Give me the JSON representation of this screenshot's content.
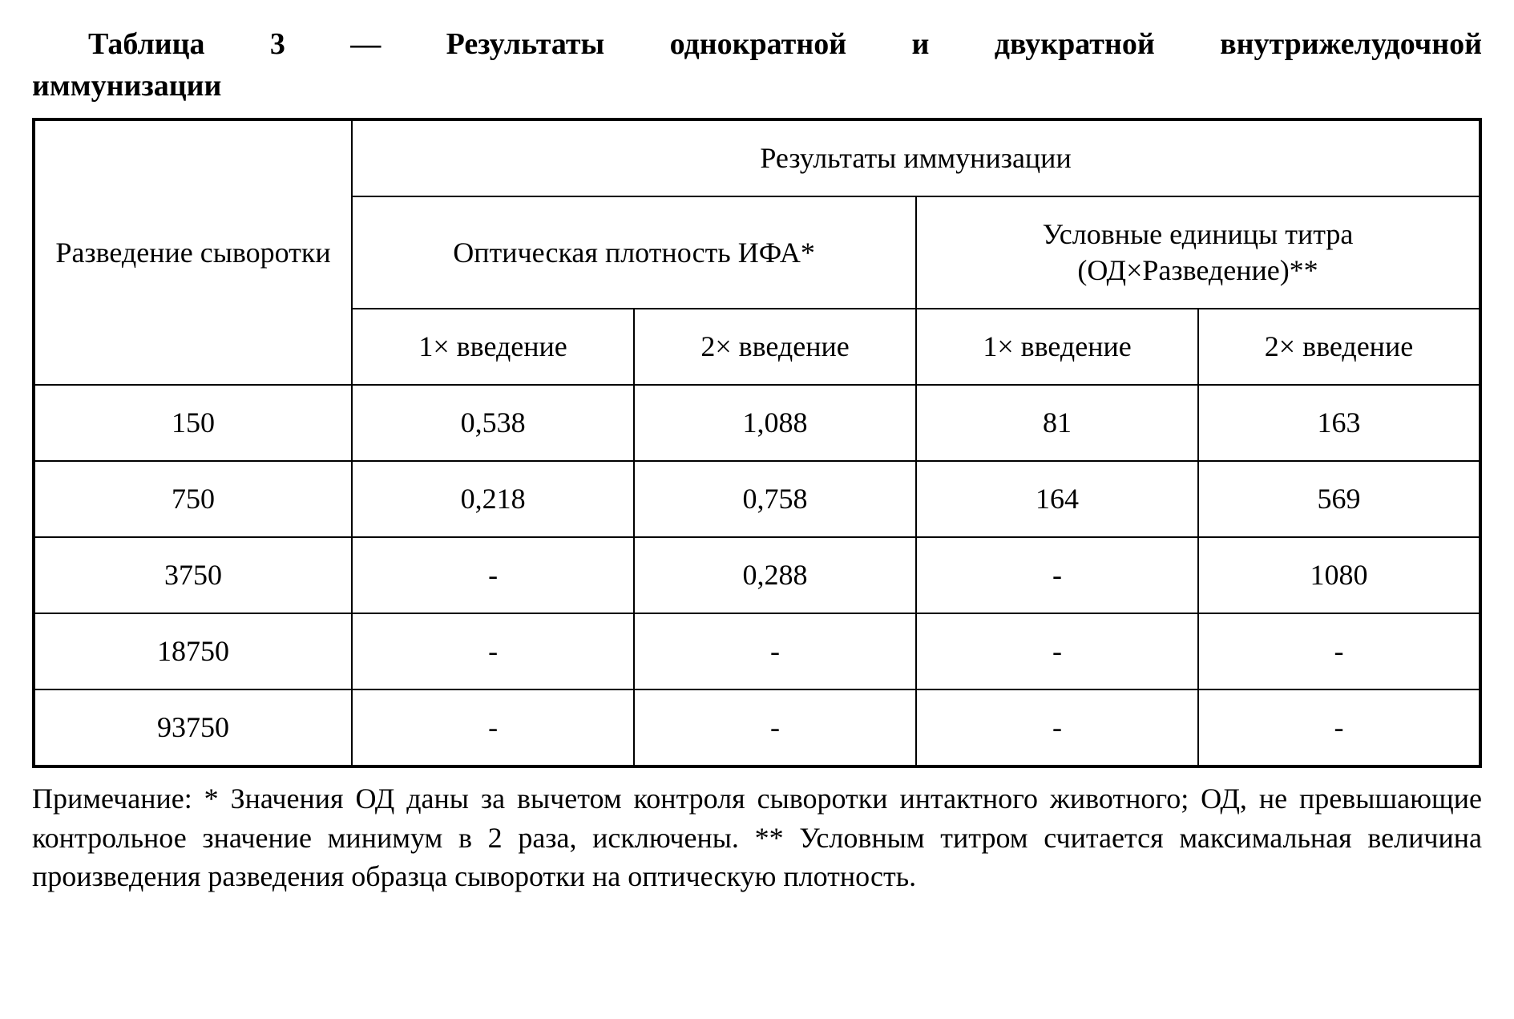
{
  "title": {
    "prefix_bold": "Таблица 3 — Результаты",
    "mid_bold_words": [
      "однократной",
      "и",
      "двукратной",
      "внутрижелудочной"
    ],
    "second_line_bold": "иммунизации"
  },
  "table": {
    "col_widths_percent": [
      22,
      19.5,
      19.5,
      19.5,
      19.5
    ],
    "header": {
      "row_label": "Разведение сыворотки",
      "results_span": "Результаты иммунизации",
      "group_a": "Оптическая плотность ИФА*",
      "group_b": "Условные единицы титра (ОД×Разведение)**",
      "sub_a1": "1× введение",
      "sub_a2": "2× введение",
      "sub_b1": "1× введение",
      "sub_b2": "2× введение"
    },
    "rows": [
      {
        "dilution": "150",
        "od1": "0,538",
        "od2": "1,088",
        "t1": "81",
        "t2": "163"
      },
      {
        "dilution": "750",
        "od1": "0,218",
        "od2": "0,758",
        "t1": "164",
        "t2": "569"
      },
      {
        "dilution": "3750",
        "od1": "-",
        "od2": "0,288",
        "t1": "-",
        "t2": "1080"
      },
      {
        "dilution": "18750",
        "od1": "-",
        "od2": "-",
        "t1": "-",
        "t2": "-"
      },
      {
        "dilution": "93750",
        "od1": "-",
        "od2": "-",
        "t1": "-",
        "t2": "-"
      }
    ]
  },
  "note": "Примечание: * Значения ОД даны за вычетом контроля сыворотки интактного животного; ОД, не превышающие контрольное значение минимум в 2 раза, исключены. ** Условным титром считается максимальная величина произведения разведения образца сыворотки на оптическую плотность."
}
